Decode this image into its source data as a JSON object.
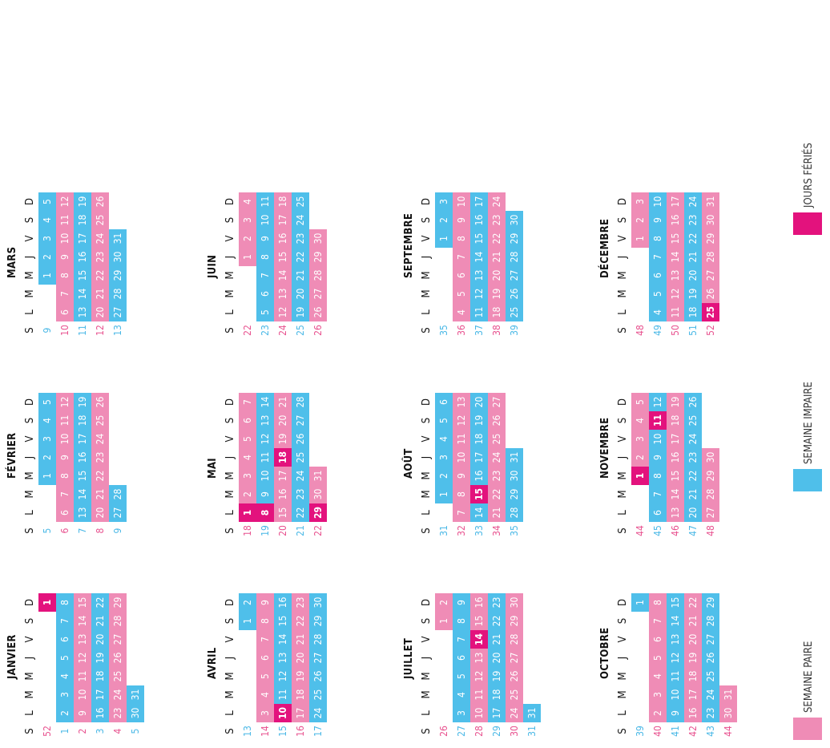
{
  "day_headers": [
    "S",
    "L",
    "M",
    "M",
    "J",
    "V",
    "S",
    "D"
  ],
  "colors": {
    "odd": "#4fbfea",
    "even": "#ef8cb6",
    "holiday": "#e3127d"
  },
  "months": [
    {
      "name": "JANVIER",
      "weeks": [
        52,
        1,
        2,
        3,
        4,
        5
      ],
      "first_wd": 6,
      "days": 31,
      "holidays": [
        1
      ]
    },
    {
      "name": "FÉVRIER",
      "weeks": [
        5,
        6,
        7,
        8,
        9
      ],
      "first_wd": 2,
      "days": 28,
      "holidays": []
    },
    {
      "name": "MARS",
      "weeks": [
        9,
        10,
        11,
        12,
        13
      ],
      "first_wd": 2,
      "days": 31,
      "holidays": []
    },
    {
      "name": "AVRIL",
      "weeks": [
        13,
        14,
        15,
        16,
        17
      ],
      "first_wd": 5,
      "days": 30,
      "holidays": [
        10
      ]
    },
    {
      "name": "MAI",
      "weeks": [
        18,
        19,
        20,
        21,
        22
      ],
      "first_wd": 0,
      "days": 31,
      "holidays": [
        1,
        8,
        18,
        29
      ]
    },
    {
      "name": "JUIN",
      "weeks": [
        22,
        23,
        24,
        25,
        26
      ],
      "first_wd": 3,
      "days": 30,
      "holidays": []
    },
    {
      "name": "JUILLET",
      "weeks": [
        26,
        27,
        28,
        29,
        30,
        31
      ],
      "first_wd": 5,
      "days": 31,
      "holidays": [
        14
      ]
    },
    {
      "name": "AOÛT",
      "weeks": [
        31,
        32,
        33,
        34,
        35
      ],
      "first_wd": 1,
      "days": 31,
      "holidays": [
        15
      ]
    },
    {
      "name": "SEPTEMBRE",
      "weeks": [
        35,
        36,
        37,
        38,
        39
      ],
      "first_wd": 4,
      "days": 30,
      "holidays": []
    },
    {
      "name": "OCTOBRE",
      "weeks": [
        39,
        40,
        41,
        42,
        43,
        44
      ],
      "first_wd": 6,
      "days": 31,
      "holidays": []
    },
    {
      "name": "NOVEMBRE",
      "weeks": [
        44,
        45,
        46,
        47,
        48
      ],
      "first_wd": 2,
      "days": 30,
      "holidays": [
        1,
        11
      ]
    },
    {
      "name": "DÉCEMBRE",
      "weeks": [
        48,
        49,
        50,
        51,
        52
      ],
      "first_wd": 4,
      "days": 31,
      "holidays": [
        25
      ]
    }
  ],
  "legend": [
    {
      "key": "even",
      "label": "SEMAINE PAIRE",
      "icon": "pink-swatch"
    },
    {
      "key": "odd",
      "label": "SEMAINE IMPAIRE",
      "icon": "blue-swatch"
    },
    {
      "key": "hol",
      "label": "JOURS FÉRIÉS",
      "icon": "magenta-swatch"
    }
  ]
}
